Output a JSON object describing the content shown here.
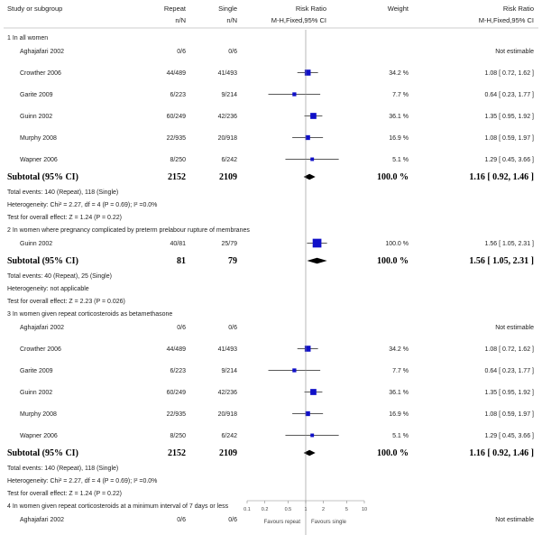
{
  "chart_data": {
    "type": "forest",
    "scale": "log",
    "xlim": [
      0.1,
      10
    ],
    "null_value": 1,
    "header": {
      "col_study": "Study or subgroup",
      "col_repeat": "Repeat",
      "col_repeat_sub": "n/N",
      "col_single": "Single",
      "col_single_sub": "n/N",
      "col_rr": "Risk Ratio",
      "col_rr_sub": "M-H,Fixed,95% CI",
      "col_weight": "Weight",
      "col_rr2": "Risk Ratio",
      "col_rr2_sub": "M-H,Fixed,95% CI"
    },
    "axis_ticks": [
      {
        "value": 0.1,
        "label": "0.1"
      },
      {
        "value": 0.2,
        "label": "0.2"
      },
      {
        "value": 0.5,
        "label": "0.5"
      },
      {
        "value": 1,
        "label": "1"
      },
      {
        "value": 2,
        "label": "2"
      },
      {
        "value": 5,
        "label": "5"
      },
      {
        "value": 10,
        "label": "10"
      }
    ],
    "favours_left": "Favours repeat",
    "favours_right": "Favours single",
    "groups": [
      {
        "title": "1 In all women",
        "studies": [
          {
            "name": "Aghajafari 2002",
            "repeat": "0/6",
            "single": "0/6",
            "weight": "",
            "ci_text": "Not estimable",
            "rr": null,
            "lo": null,
            "hi": null,
            "w": 0
          },
          {
            "name": "Crowther 2006",
            "repeat": "44/489",
            "single": "41/493",
            "weight": "34.2 %",
            "ci_text": "1.08 [ 0.72, 1.62 ]",
            "rr": 1.08,
            "lo": 0.72,
            "hi": 1.62,
            "w": 34.2
          },
          {
            "name": "Garite 2009",
            "repeat": "6/223",
            "single": "9/214",
            "weight": "7.7 %",
            "ci_text": "0.64 [ 0.23, 1.77 ]",
            "rr": 0.64,
            "lo": 0.23,
            "hi": 1.77,
            "w": 7.7
          },
          {
            "name": "Guinn 2002",
            "repeat": "60/249",
            "single": "42/236",
            "weight": "36.1 %",
            "ci_text": "1.35 [ 0.95, 1.92 ]",
            "rr": 1.35,
            "lo": 0.95,
            "hi": 1.92,
            "w": 36.1
          },
          {
            "name": "Murphy 2008",
            "repeat": "22/935",
            "single": "20/918",
            "weight": "16.9 %",
            "ci_text": "1.08 [ 0.59, 1.97 ]",
            "rr": 1.08,
            "lo": 0.59,
            "hi": 1.97,
            "w": 16.9
          },
          {
            "name": "Wapner 2006",
            "repeat": "8/250",
            "single": "6/242",
            "weight": "5.1 %",
            "ci_text": "1.29 [ 0.45, 3.66 ]",
            "rr": 1.29,
            "lo": 0.45,
            "hi": 3.66,
            "w": 5.1
          }
        ],
        "subtotal": {
          "label": "Subtotal (95% CI)",
          "repeat": "2152",
          "single": "2109",
          "weight": "100.0 %",
          "ci_text": "1.16 [ 0.92, 1.46 ]",
          "rr": 1.16,
          "lo": 0.92,
          "hi": 1.46
        },
        "notes": [
          "Total events: 140 (Repeat), 118 (Single)",
          "Heterogeneity: Chi² = 2.27, df = 4 (P = 0.69); I² =0.0%",
          "Test for overall effect: Z = 1.24 (P = 0.22)"
        ]
      },
      {
        "title": "2 In women where pregnancy complicated by preterm prelabour rupture of membranes",
        "studies": [
          {
            "name": "Guinn 2002",
            "repeat": "40/81",
            "single": "25/79",
            "weight": "100.0 %",
            "ci_text": "1.56 [ 1.05, 2.31 ]",
            "rr": 1.56,
            "lo": 1.05,
            "hi": 2.31,
            "w": 100
          }
        ],
        "subtotal": {
          "label": "Subtotal (95% CI)",
          "repeat": "81",
          "single": "79",
          "weight": "100.0 %",
          "ci_text": "1.56 [ 1.05, 2.31 ]",
          "rr": 1.56,
          "lo": 1.05,
          "hi": 2.31
        },
        "notes": [
          "Total events: 40 (Repeat), 25 (Single)",
          "Heterogeneity: not applicable",
          "Test for overall effect: Z = 2.23 (P = 0.026)"
        ]
      },
      {
        "title": "3 In women given repeat corticosteroids as betamethasone",
        "studies": [
          {
            "name": "Aghajafari 2002",
            "repeat": "0/6",
            "single": "0/6",
            "weight": "",
            "ci_text": "Not estimable",
            "rr": null,
            "lo": null,
            "hi": null,
            "w": 0
          },
          {
            "name": "Crowther 2006",
            "repeat": "44/489",
            "single": "41/493",
            "weight": "34.2 %",
            "ci_text": "1.08 [ 0.72, 1.62 ]",
            "rr": 1.08,
            "lo": 0.72,
            "hi": 1.62,
            "w": 34.2
          },
          {
            "name": "Garite 2009",
            "repeat": "6/223",
            "single": "9/214",
            "weight": "7.7 %",
            "ci_text": "0.64 [ 0.23, 1.77 ]",
            "rr": 0.64,
            "lo": 0.23,
            "hi": 1.77,
            "w": 7.7
          },
          {
            "name": "Guinn 2002",
            "repeat": "60/249",
            "single": "42/236",
            "weight": "36.1 %",
            "ci_text": "1.35 [ 0.95, 1.92 ]",
            "rr": 1.35,
            "lo": 0.95,
            "hi": 1.92,
            "w": 36.1
          },
          {
            "name": "Murphy 2008",
            "repeat": "22/935",
            "single": "20/918",
            "weight": "16.9 %",
            "ci_text": "1.08 [ 0.59, 1.97 ]",
            "rr": 1.08,
            "lo": 0.59,
            "hi": 1.97,
            "w": 16.9
          },
          {
            "name": "Wapner 2006",
            "repeat": "8/250",
            "single": "6/242",
            "weight": "5.1 %",
            "ci_text": "1.29 [ 0.45, 3.66 ]",
            "rr": 1.29,
            "lo": 0.45,
            "hi": 3.66,
            "w": 5.1
          }
        ],
        "subtotal": {
          "label": "Subtotal (95% CI)",
          "repeat": "2152",
          "single": "2109",
          "weight": "100.0 %",
          "ci_text": "1.16 [ 0.92, 1.46 ]",
          "rr": 1.16,
          "lo": 0.92,
          "hi": 1.46
        },
        "notes": [
          "Total events: 140 (Repeat), 118 (Single)",
          "Heterogeneity: Chi² = 2.27, df = 4 (P = 0.69); I² =0.0%",
          "Test for overall effect: Z = 1.24 (P = 0.22)"
        ]
      },
      {
        "title": "4 In women given repeat corticosteroids at a minimum interval of 7 days or less",
        "studies": [
          {
            "name": "Aghajafari 2002",
            "repeat": "0/6",
            "single": "0/6",
            "weight": "",
            "ci_text": "Not estimable",
            "rr": null,
            "lo": null,
            "hi": null,
            "w": 0
          }
        ],
        "subtotal": null,
        "notes": []
      }
    ],
    "colors": {
      "marker": "#1010c8",
      "line": "#222222",
      "axis": "#888888",
      "rule": "#999999"
    }
  }
}
